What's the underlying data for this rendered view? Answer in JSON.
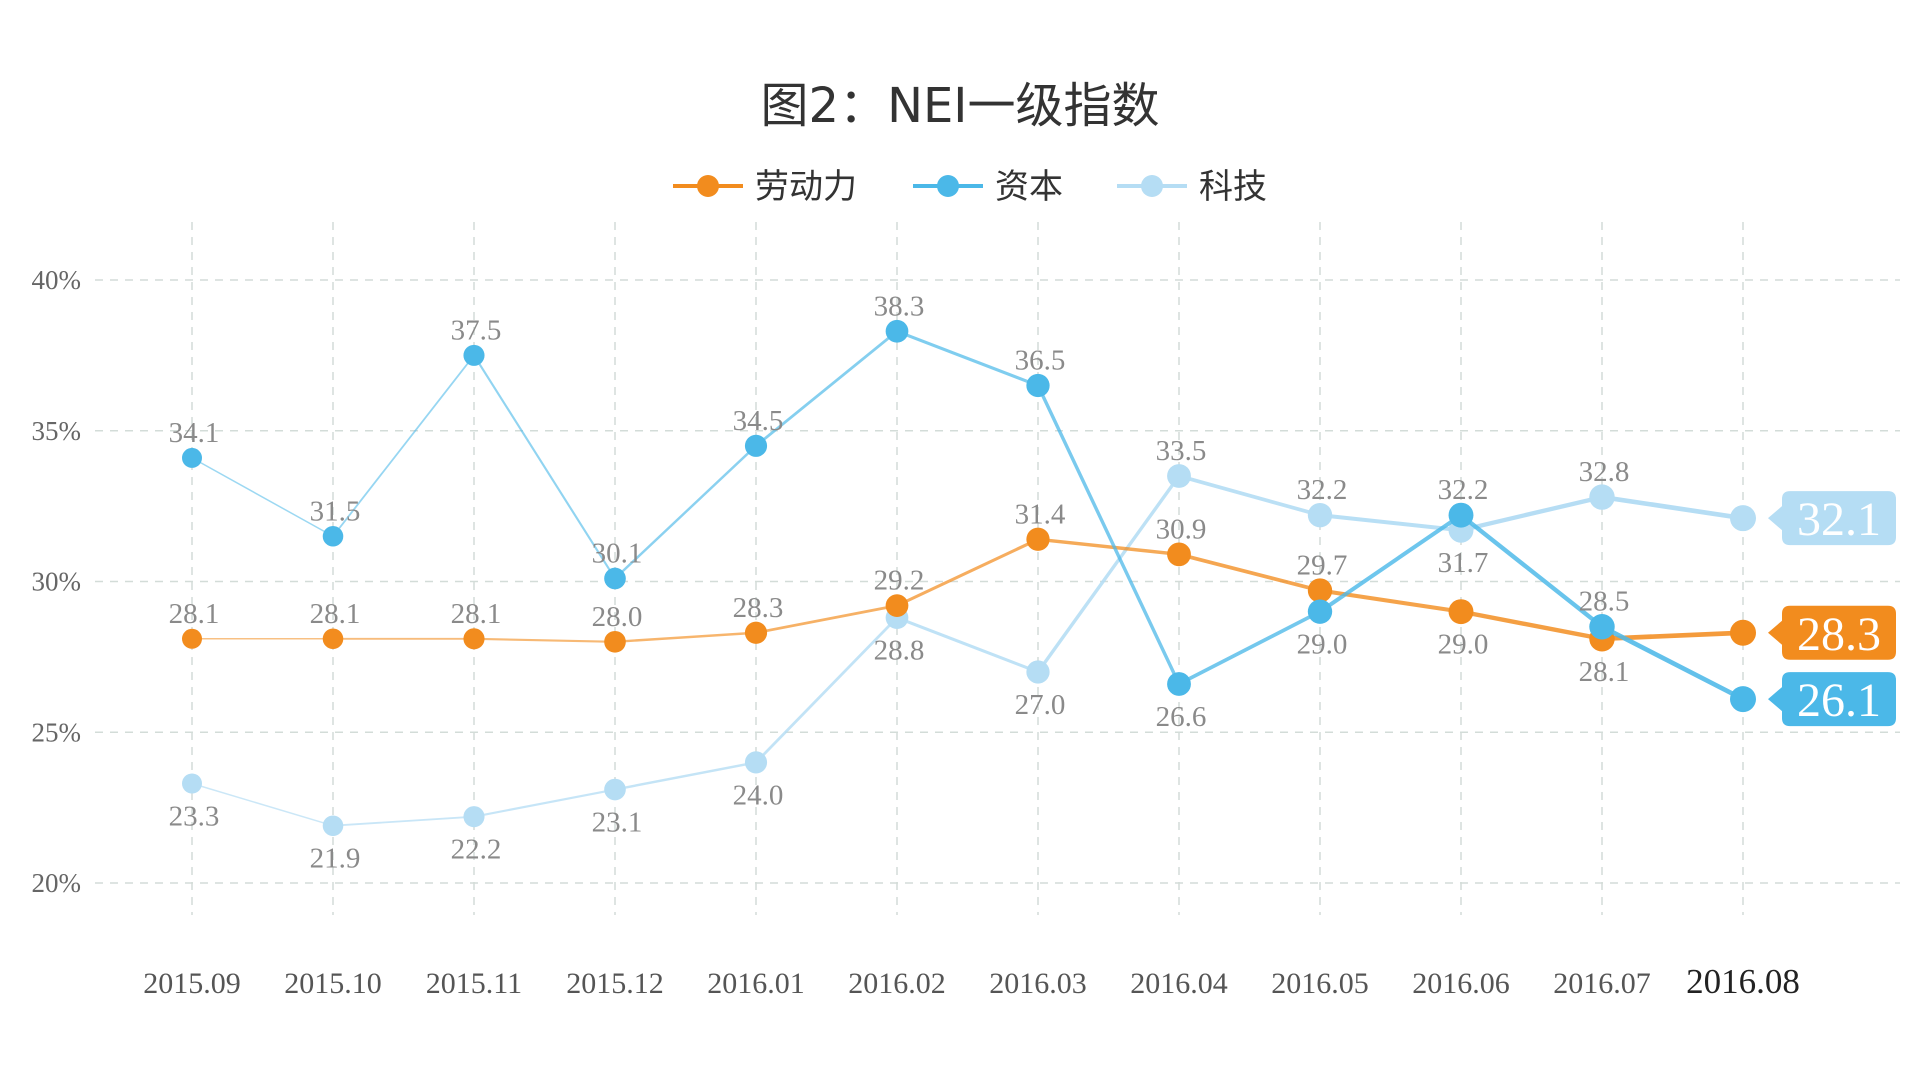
{
  "chart_data": {
    "type": "line",
    "title": "图2：NEI一级指数",
    "xlabel": "",
    "ylabel": "",
    "categories": [
      "2015.09",
      "2015.10",
      "2015.11",
      "2015.12",
      "2016.01",
      "2016.02",
      "2016.03",
      "2016.04",
      "2016.05",
      "2016.06",
      "2016.07",
      "2016.08"
    ],
    "y_ticks": [
      20,
      25,
      30,
      35,
      40
    ],
    "y_tick_labels": [
      "20%",
      "25%",
      "30%",
      "35%",
      "40%"
    ],
    "ylim": [
      20,
      40
    ],
    "grid": true,
    "legend_position": "top-center",
    "series": [
      {
        "name": "劳动力",
        "color": "#F28C1E",
        "values": [
          28.1,
          28.1,
          28.1,
          28.0,
          28.3,
          29.2,
          31.4,
          30.9,
          29.7,
          29.0,
          28.1,
          28.3
        ],
        "labels": [
          "28.1",
          "28.1",
          "28.1",
          "28.0",
          "28.3",
          "29.2",
          "31.4",
          "30.9",
          "29.7",
          "29.0",
          "28.1",
          ""
        ],
        "label_pos": [
          "above",
          "above",
          "above",
          "above",
          "above",
          "above",
          "above",
          "above",
          "above",
          "below",
          "below",
          "none"
        ],
        "end_label": "28.3"
      },
      {
        "name": "资本",
        "color": "#4BB8E8",
        "values": [
          34.1,
          31.5,
          37.5,
          30.1,
          34.5,
          38.3,
          36.5,
          26.6,
          29.0,
          32.2,
          28.5,
          26.1
        ],
        "labels": [
          "34.1",
          "31.5",
          "37.5",
          "30.1",
          "34.5",
          "38.3",
          "36.5",
          "26.6",
          "29.0",
          "32.2",
          "28.5",
          ""
        ],
        "label_pos": [
          "above",
          "above",
          "above",
          "above",
          "above",
          "above",
          "above",
          "below",
          "below",
          "above",
          "above",
          "none"
        ],
        "end_label": "26.1"
      },
      {
        "name": "科技",
        "color": "#B5DDF4",
        "values": [
          23.3,
          21.9,
          22.2,
          23.1,
          24.0,
          28.8,
          27.0,
          33.5,
          32.2,
          31.7,
          32.8,
          32.1
        ],
        "labels": [
          "23.3",
          "21.9",
          "22.2",
          "23.1",
          "24.0",
          "28.8",
          "27.0",
          "33.5",
          "32.2",
          "31.7",
          "32.8",
          ""
        ],
        "label_pos": [
          "below",
          "below",
          "below",
          "below",
          "below",
          "below",
          "below",
          "above",
          "above",
          "below",
          "above",
          "none"
        ],
        "end_label": "32.1"
      }
    ]
  }
}
